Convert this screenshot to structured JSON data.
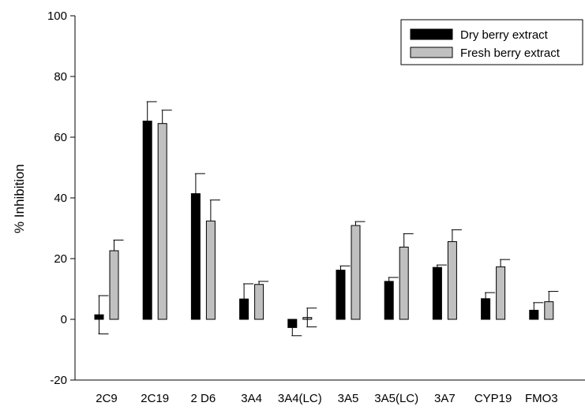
{
  "chart_data": {
    "type": "bar",
    "ylabel": "% Inhibition",
    "xlabel": "",
    "ylim": [
      -20,
      100
    ],
    "yticks": [
      -20,
      0,
      20,
      40,
      60,
      80,
      100
    ],
    "categories": [
      "2C9",
      "2C19",
      "2 D6",
      "3A4",
      "3A4(LC)",
      "3A5",
      "3A5(LC)",
      "3A7",
      "CYP19",
      "FMO3"
    ],
    "series": [
      {
        "name": "Dry berry extract",
        "color": "#000000",
        "values": [
          1.5,
          65.3,
          41.4,
          6.7,
          -2.7,
          16.2,
          12.5,
          17.1,
          6.8,
          3.0
        ],
        "errors": [
          6.3,
          6.4,
          6.6,
          5.0,
          2.7,
          1.4,
          1.3,
          0.8,
          2.0,
          2.5
        ]
      },
      {
        "name": "Fresh berry extract",
        "color": "#c0c0c0",
        "values": [
          22.6,
          64.5,
          32.4,
          11.5,
          0.6,
          30.9,
          23.8,
          25.6,
          17.3,
          5.8
        ],
        "errors": [
          3.5,
          4.4,
          6.9,
          1.0,
          3.1,
          1.3,
          4.4,
          3.9,
          2.4,
          3.4
        ]
      }
    ],
    "legend_position": "top-right",
    "grid": false
  }
}
